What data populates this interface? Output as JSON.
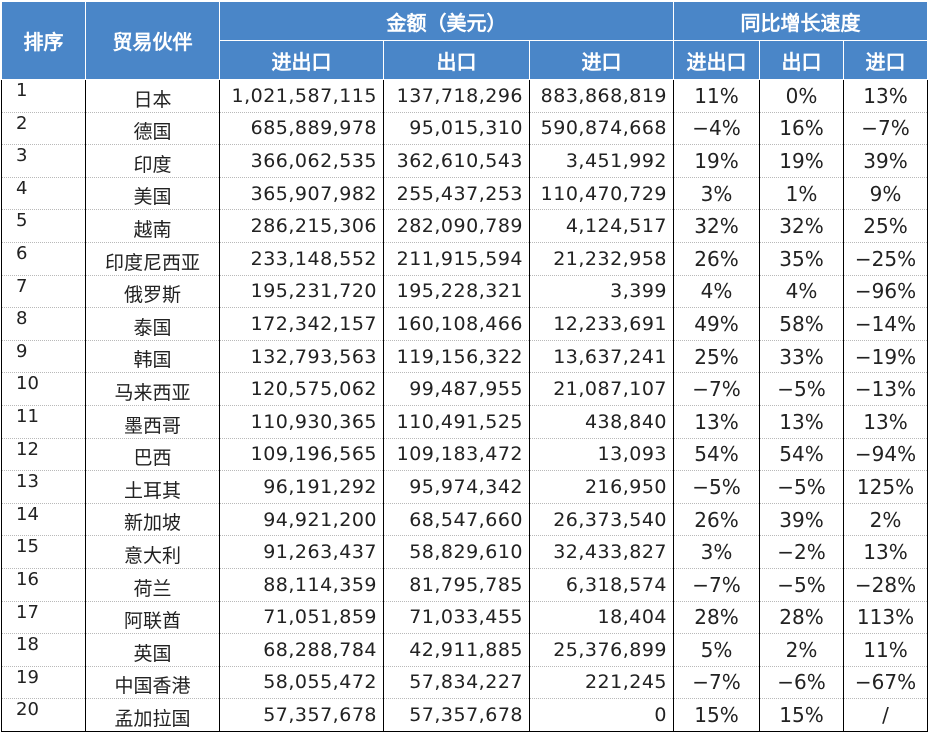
{
  "header": {
    "rank": "排序",
    "partner": "贸易伙伴",
    "amount_group": "金额（美元）",
    "growth_group": "同比增长速度",
    "total": "进出口",
    "export": "出口",
    "import": "进口",
    "growth_total": "进出口",
    "growth_export": "出口",
    "growth_import": "进口"
  },
  "rows": [
    {
      "rank": "1",
      "partner": "日本",
      "total": "1,021,587,115",
      "export": "137,718,296",
      "import": "883,868,819",
      "g_total": "11%",
      "g_export": "0%",
      "g_import": "13%"
    },
    {
      "rank": "2",
      "partner": "德国",
      "total": "685,889,978",
      "export": "95,015,310",
      "import": "590,874,668",
      "g_total": "−4%",
      "g_export": "16%",
      "g_import": "−7%"
    },
    {
      "rank": "3",
      "partner": "印度",
      "total": "366,062,535",
      "export": "362,610,543",
      "import": "3,451,992",
      "g_total": "19%",
      "g_export": "19%",
      "g_import": "39%"
    },
    {
      "rank": "4",
      "partner": "美国",
      "total": "365,907,982",
      "export": "255,437,253",
      "import": "110,470,729",
      "g_total": "3%",
      "g_export": "1%",
      "g_import": "9%"
    },
    {
      "rank": "5",
      "partner": "越南",
      "total": "286,215,306",
      "export": "282,090,789",
      "import": "4,124,517",
      "g_total": "32%",
      "g_export": "32%",
      "g_import": "25%"
    },
    {
      "rank": "6",
      "partner": "印度尼西亚",
      "total": "233,148,552",
      "export": "211,915,594",
      "import": "21,232,958",
      "g_total": "26%",
      "g_export": "35%",
      "g_import": "−25%"
    },
    {
      "rank": "7",
      "partner": "俄罗斯",
      "total": "195,231,720",
      "export": "195,228,321",
      "import": "3,399",
      "g_total": "4%",
      "g_export": "4%",
      "g_import": "−96%"
    },
    {
      "rank": "8",
      "partner": "泰国",
      "total": "172,342,157",
      "export": "160,108,466",
      "import": "12,233,691",
      "g_total": "49%",
      "g_export": "58%",
      "g_import": "−14%"
    },
    {
      "rank": "9",
      "partner": "韩国",
      "total": "132,793,563",
      "export": "119,156,322",
      "import": "13,637,241",
      "g_total": "25%",
      "g_export": "33%",
      "g_import": "−19%"
    },
    {
      "rank": "10",
      "partner": "马来西亚",
      "total": "120,575,062",
      "export": "99,487,955",
      "import": "21,087,107",
      "g_total": "−7%",
      "g_export": "−5%",
      "g_import": "−13%"
    },
    {
      "rank": "11",
      "partner": "墨西哥",
      "total": "110,930,365",
      "export": "110,491,525",
      "import": "438,840",
      "g_total": "13%",
      "g_export": "13%",
      "g_import": "13%"
    },
    {
      "rank": "12",
      "partner": "巴西",
      "total": "109,196,565",
      "export": "109,183,472",
      "import": "13,093",
      "g_total": "54%",
      "g_export": "54%",
      "g_import": "−94%"
    },
    {
      "rank": "13",
      "partner": "土耳其",
      "total": "96,191,292",
      "export": "95,974,342",
      "import": "216,950",
      "g_total": "−5%",
      "g_export": "−5%",
      "g_import": "125%"
    },
    {
      "rank": "14",
      "partner": "新加坡",
      "total": "94,921,200",
      "export": "68,547,660",
      "import": "26,373,540",
      "g_total": "26%",
      "g_export": "39%",
      "g_import": "2%"
    },
    {
      "rank": "15",
      "partner": "意大利",
      "total": "91,263,437",
      "export": "58,829,610",
      "import": "32,433,827",
      "g_total": "3%",
      "g_export": "−2%",
      "g_import": "13%"
    },
    {
      "rank": "16",
      "partner": "荷兰",
      "total": "88,114,359",
      "export": "81,795,785",
      "import": "6,318,574",
      "g_total": "−7%",
      "g_export": "−5%",
      "g_import": "−28%"
    },
    {
      "rank": "17",
      "partner": "阿联酋",
      "total": "71,051,859",
      "export": "71,033,455",
      "import": "18,404",
      "g_total": "28%",
      "g_export": "28%",
      "g_import": "113%"
    },
    {
      "rank": "18",
      "partner": "英国",
      "total": "68,288,784",
      "export": "42,911,885",
      "import": "25,376,899",
      "g_total": "5%",
      "g_export": "2%",
      "g_import": "11%"
    },
    {
      "rank": "19",
      "partner": "中国香港",
      "total": "58,055,472",
      "export": "57,834,227",
      "import": "221,245",
      "g_total": "−7%",
      "g_export": "−6%",
      "g_import": "−67%"
    },
    {
      "rank": "20",
      "partner": "孟加拉国",
      "total": "57,357,678",
      "export": "57,357,678",
      "import": "0",
      "g_total": "15%",
      "g_export": "15%",
      "g_import": "/"
    }
  ]
}
